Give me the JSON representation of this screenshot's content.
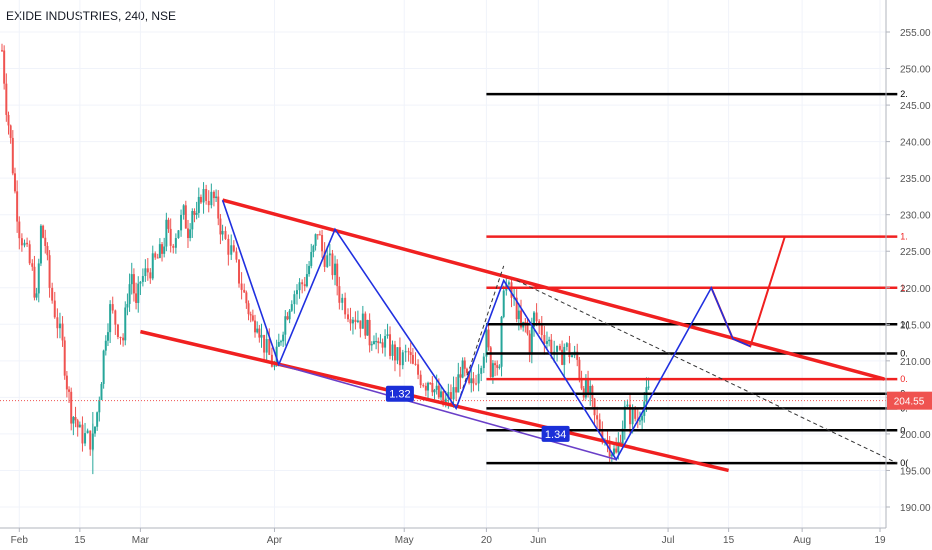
{
  "chart_data": {
    "type": "candlestick",
    "title": "EXIDE INDUSTRIES, 240, NSE",
    "symbol": "EXIDE INDUSTRIES",
    "interval": "240",
    "exchange": "NSE",
    "last_price": "204.55",
    "ylim": [
      188.5,
      257.5
    ],
    "y_ticks": [
      "190.00",
      "195.00",
      "200.00",
      "205.00",
      "210.00",
      "215.00",
      "220.00",
      "225.00",
      "230.00",
      "235.00",
      "240.00",
      "245.00",
      "250.00",
      "255.00"
    ],
    "x_ticks": [
      "Feb",
      "15",
      "Mar",
      "Apr",
      "May",
      "20",
      "Jun",
      "Jul",
      "15",
      "Aug",
      "19"
    ],
    "grid": true,
    "colors": {
      "up": "#26a69a",
      "down": "#ef5350",
      "channel": "#f02020",
      "wave": "#2030e0",
      "fib_black": "#000000",
      "fib_red": "#f02020",
      "badge": "#1b2fd8",
      "price_line": "#ef5350",
      "price_label": "#ef5350"
    },
    "candle_points": [
      [
        "01-28",
        252.5
      ],
      [
        "01-29",
        245
      ],
      [
        "01-30",
        240
      ],
      [
        "01-31",
        233
      ],
      [
        "02-01",
        228
      ],
      [
        "02-04",
        222
      ],
      [
        "02-05",
        218
      ],
      [
        "02-06",
        228
      ],
      [
        "02-07",
        226
      ],
      [
        "02-08",
        220
      ],
      [
        "02-11",
        212
      ],
      [
        "02-12",
        207
      ],
      [
        "02-13",
        203
      ],
      [
        "02-14",
        202
      ],
      [
        "02-15",
        200
      ],
      [
        "02-18",
        199
      ],
      [
        "02-19",
        203
      ],
      [
        "02-20",
        208
      ],
      [
        "02-21",
        214
      ],
      [
        "02-22",
        217
      ],
      [
        "02-25",
        213
      ],
      [
        "02-26",
        219
      ],
      [
        "02-27",
        222
      ],
      [
        "02-28",
        217
      ],
      [
        "03-01",
        221
      ],
      [
        "03-05",
        224
      ],
      [
        "03-06",
        225
      ],
      [
        "03-07",
        228
      ],
      [
        "03-08",
        226
      ],
      [
        "03-11",
        230
      ],
      [
        "03-12",
        228
      ],
      [
        "03-13",
        231
      ],
      [
        "03-14",
        229
      ],
      [
        "03-15",
        233
      ],
      [
        "03-18",
        232
      ],
      [
        "03-19",
        230
      ],
      [
        "03-20",
        227
      ],
      [
        "03-22",
        225
      ],
      [
        "03-25",
        219
      ],
      [
        "03-26",
        217
      ],
      [
        "03-27",
        215
      ],
      [
        "03-28",
        216
      ],
      [
        "03-29",
        213
      ],
      [
        "04-01",
        209
      ],
      [
        "04-02",
        212
      ],
      [
        "04-03",
        215
      ],
      [
        "04-04",
        217
      ],
      [
        "04-05",
        219
      ],
      [
        "04-08",
        221
      ],
      [
        "04-09",
        223
      ],
      [
        "04-10",
        225
      ],
      [
        "04-11",
        228
      ],
      [
        "04-12",
        225
      ],
      [
        "04-15",
        222
      ],
      [
        "04-16",
        219
      ],
      [
        "04-18",
        217
      ],
      [
        "04-22",
        215
      ],
      [
        "04-23",
        213
      ],
      [
        "04-24",
        214
      ],
      [
        "04-25",
        211
      ],
      [
        "04-26",
        213
      ],
      [
        "04-30",
        210
      ],
      [
        "05-02",
        211
      ],
      [
        "05-03",
        209
      ],
      [
        "05-06",
        207
      ],
      [
        "05-07",
        208
      ],
      [
        "05-08",
        206
      ],
      [
        "05-09",
        205
      ],
      [
        "05-10",
        204
      ],
      [
        "05-13",
        206
      ],
      [
        "05-14",
        209
      ],
      [
        "05-15",
        208
      ],
      [
        "05-16",
        206
      ],
      [
        "05-17",
        207
      ],
      [
        "05-20",
        213
      ],
      [
        "05-21",
        209
      ],
      [
        "05-22",
        211
      ],
      [
        "05-23",
        208
      ],
      [
        "05-24",
        221
      ],
      [
        "05-27",
        217
      ],
      [
        "05-28",
        214
      ],
      [
        "05-29",
        215
      ],
      [
        "05-30",
        212
      ],
      [
        "05-31",
        216
      ],
      [
        "06-03",
        213
      ],
      [
        "06-04",
        212
      ],
      [
        "06-06",
        210
      ],
      [
        "06-07",
        212
      ],
      [
        "06-10",
        210
      ],
      [
        "06-11",
        207
      ],
      [
        "06-12",
        206
      ],
      [
        "06-13",
        205
      ],
      [
        "06-14",
        202
      ],
      [
        "06-17",
        199
      ],
      [
        "06-18",
        198
      ],
      [
        "06-19",
        197
      ],
      [
        "06-20",
        200
      ],
      [
        "06-21",
        203
      ],
      [
        "06-24",
        202
      ],
      [
        "06-25",
        204
      ],
      [
        "06-26",
        205
      ],
      [
        "06-27",
        206
      ]
    ],
    "wave_blue": [
      [
        "03-20",
        232
      ],
      [
        "04-02",
        209.5
      ],
      [
        "04-15",
        228
      ],
      [
        "05-13",
        203.5
      ],
      [
        "05-24",
        221
      ],
      [
        "06-19",
        196.5
      ],
      [
        "07-11",
        220
      ],
      [
        "07-16",
        213
      ],
      [
        "07-20",
        212
      ]
    ],
    "dashed_wave": [
      [
        "05-13",
        203.5
      ],
      [
        "05-24",
        223
      ]
    ],
    "projection_red": [
      [
        "07-11",
        220
      ],
      [
        "07-16",
        213
      ],
      [
        "07-20",
        212
      ],
      [
        "07-28",
        227
      ]
    ],
    "channel_upper": [
      [
        "03-20",
        232
      ],
      [
        "08-20",
        207.5
      ]
    ],
    "channel_lower": [
      [
        "03-01",
        214
      ],
      [
        "07-15",
        195
      ]
    ],
    "dotted_trend": [
      [
        "05-27",
        221
      ],
      [
        "08-23",
        196
      ]
    ],
    "fib_levels": [
      {
        "price": 246.5,
        "label": "2.",
        "color": "black"
      },
      {
        "price": 227,
        "label": "1.",
        "color": "red"
      },
      {
        "price": 220,
        "label": "1.",
        "color": "red"
      },
      {
        "price": 215,
        "label": "1(",
        "color": "black"
      },
      {
        "price": 211,
        "label": "0.",
        "color": "black"
      },
      {
        "price": 207.5,
        "label": "0.",
        "color": "red"
      },
      {
        "price": 205.5,
        "label": "0.",
        "color": "black"
      },
      {
        "price": 203.5,
        "label": "0.",
        "color": "black"
      },
      {
        "price": 200.5,
        "label": "0.",
        "color": "black"
      },
      {
        "price": 196,
        "label": "0(",
        "color": "black"
      }
    ],
    "fib_x_range": [
      "05-20",
      "08-23"
    ],
    "badges": [
      {
        "text": "1.32",
        "date": "04-30",
        "price": 205.5
      },
      {
        "text": "1.34",
        "date": "06-05",
        "price": 200
      }
    ]
  }
}
